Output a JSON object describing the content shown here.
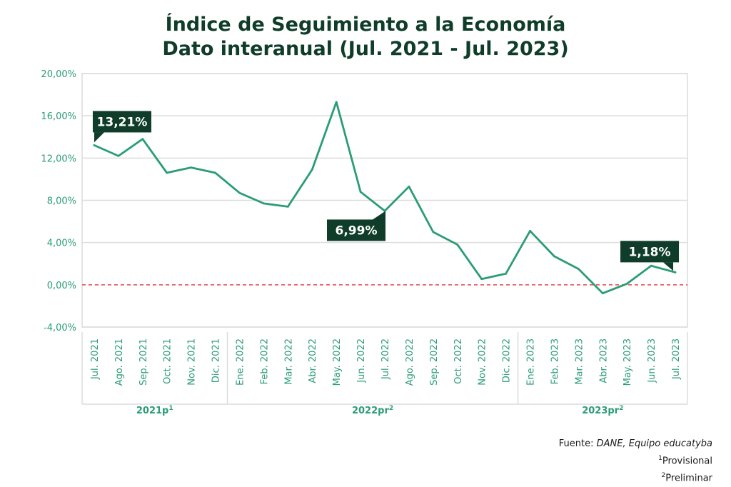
{
  "title_line1": "Índice de Seguimiento a la Economía",
  "title_line2": "Dato interanual (Jul. 2021 - Jul. 2023)",
  "colors": {
    "line": "#2a9d75",
    "axis_text": "#2a9d75",
    "zero_line": "#e8454a",
    "callout_bg": "#0f3d2a",
    "callout_text": "#ffffff",
    "grid": "#dcdcdc",
    "title": "#0f3d2a"
  },
  "chart_data": {
    "type": "line",
    "title": "Índice de Seguimiento a la Economía Dato interanual (Jul. 2021 - Jul. 2023)",
    "xlabel": "",
    "ylabel": "",
    "ylim": [
      -4,
      20
    ],
    "yticks": [
      20,
      16,
      12,
      8,
      4,
      0,
      -4
    ],
    "ytick_labels": [
      "20,00%",
      "16,00%",
      "12,00%",
      "8,00%",
      "4,00%",
      "0,00%",
      "-4,00%"
    ],
    "grid": true,
    "categories": [
      "Jul. 2021",
      "Ago. 2021",
      "Sep. 2021",
      "Oct. 2021",
      "Nov. 2021",
      "Dic. 2021",
      "Ene. 2022",
      "Feb. 2022",
      "Mar. 2022",
      "Abr. 2022",
      "May. 2022",
      "Jun. 2022",
      "Jul. 2022",
      "Ago. 2022",
      "Sep. 2022",
      "Oct. 2022",
      "Nov. 2022",
      "Dic. 2022",
      "Ene. 2023",
      "Feb. 2023",
      "Mar. 2023",
      "Abr. 2023",
      "May. 2023",
      "Jun. 2023",
      "Jul. 2023"
    ],
    "series": [
      {
        "values": [
          13.21,
          12.2,
          13.8,
          10.6,
          11.1,
          10.6,
          8.7,
          7.7,
          7.4,
          10.9,
          17.3,
          8.8,
          6.99,
          9.3,
          5.0,
          3.8,
          0.55,
          1.05,
          5.1,
          2.7,
          1.5,
          -0.8,
          0.1,
          1.8,
          1.18
        ]
      }
    ],
    "reference_line": {
      "value": 0
    },
    "groups": [
      {
        "label": "2021p",
        "sup": "1",
        "start": 0,
        "end": 5
      },
      {
        "label": "2022pr",
        "sup": "2",
        "start": 6,
        "end": 17
      },
      {
        "label": "2023pr",
        "sup": "2",
        "start": 18,
        "end": 24
      }
    ],
    "annotations": [
      {
        "index": 0,
        "text": "13,21%"
      },
      {
        "index": 12,
        "text": "6,99%"
      },
      {
        "index": 24,
        "text": "1,18%"
      }
    ]
  },
  "notes": {
    "source_label": "Fuente:",
    "source_value": "DANE, Equipo educatyba",
    "note1_sup": "1",
    "note1_text": "Provisional",
    "note2_sup": "2",
    "note2_text": "Preliminar"
  }
}
